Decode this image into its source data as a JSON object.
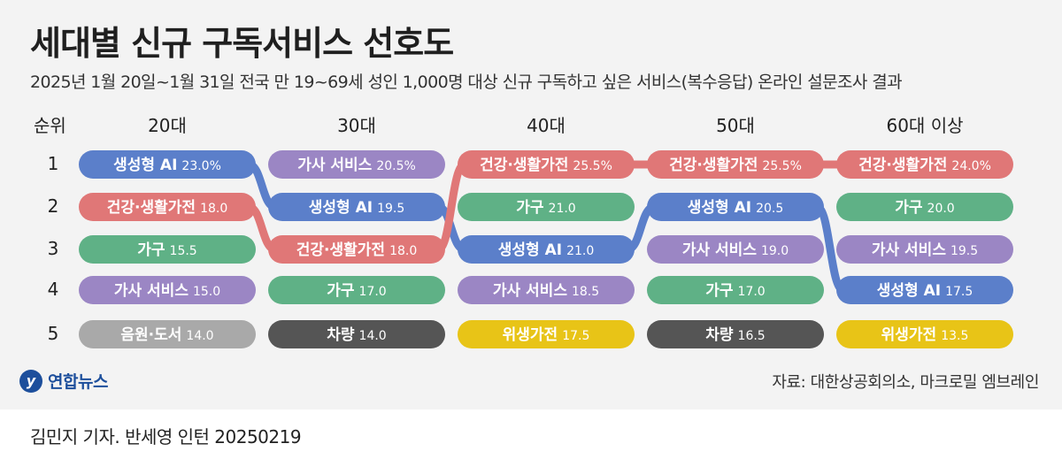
{
  "title": "세대별 신규 구독서비스 선호도",
  "subtitle": "2025년 1월 20일~1월 31일 전국 만 19~69세 성인 1,000명 대상 신규 구독하고 싶은 서비스(복수응답) 온라인 설문조사 결과",
  "rank_header": "순위",
  "source": "자료: 대한상공회의소, 마크로밀 엠브레인",
  "logo_text": "연합뉴스",
  "credit": "김민지 기자. 반세영 인턴  20250219",
  "colors": {
    "생성형 AI": "#5b7fca",
    "건강·생활가전": "#e07777",
    "가구": "#5fb186",
    "가사 서비스": "#9b86c4",
    "음원·도서": "#a9a9a9",
    "차량": "#555555",
    "위생가전": "#e8c417"
  },
  "chart_data": {
    "type": "table",
    "ranks": [
      "1",
      "2",
      "3",
      "4",
      "5"
    ],
    "columns": [
      {
        "name": "20대",
        "items": [
          {
            "label": "생성형 AI",
            "value": "23.0%"
          },
          {
            "label": "건강·생활가전",
            "value": "18.0"
          },
          {
            "label": "가구",
            "value": "15.5"
          },
          {
            "label": "가사 서비스",
            "value": "15.0"
          },
          {
            "label": "음원·도서",
            "value": "14.0"
          }
        ]
      },
      {
        "name": "30대",
        "items": [
          {
            "label": "가사 서비스",
            "value": "20.5%"
          },
          {
            "label": "생성형 AI",
            "value": "19.5"
          },
          {
            "label": "건강·생활가전",
            "value": "18.0"
          },
          {
            "label": "가구",
            "value": "17.0"
          },
          {
            "label": "차량",
            "value": "14.0"
          }
        ]
      },
      {
        "name": "40대",
        "items": [
          {
            "label": "건강·생활가전",
            "value": "25.5%"
          },
          {
            "label": "가구",
            "value": "21.0"
          },
          {
            "label": "생성형 AI",
            "value": "21.0"
          },
          {
            "label": "가사 서비스",
            "value": "18.5"
          },
          {
            "label": "위생가전",
            "value": "17.5"
          }
        ]
      },
      {
        "name": "50대",
        "items": [
          {
            "label": "건강·생활가전",
            "value": "25.5%"
          },
          {
            "label": "생성형 AI",
            "value": "20.5"
          },
          {
            "label": "가사 서비스",
            "value": "19.0"
          },
          {
            "label": "가구",
            "value": "17.0"
          },
          {
            "label": "차량",
            "value": "16.5"
          }
        ]
      },
      {
        "name": "60대 이상",
        "items": [
          {
            "label": "건강·생활가전",
            "value": "24.0%"
          },
          {
            "label": "가구",
            "value": "20.0"
          },
          {
            "label": "가사 서비스",
            "value": "19.5"
          },
          {
            "label": "생성형 AI",
            "value": "17.5"
          },
          {
            "label": "위생가전",
            "value": "13.5"
          }
        ]
      }
    ],
    "connected_series": [
      "생성형 AI",
      "건강·생활가전"
    ]
  }
}
